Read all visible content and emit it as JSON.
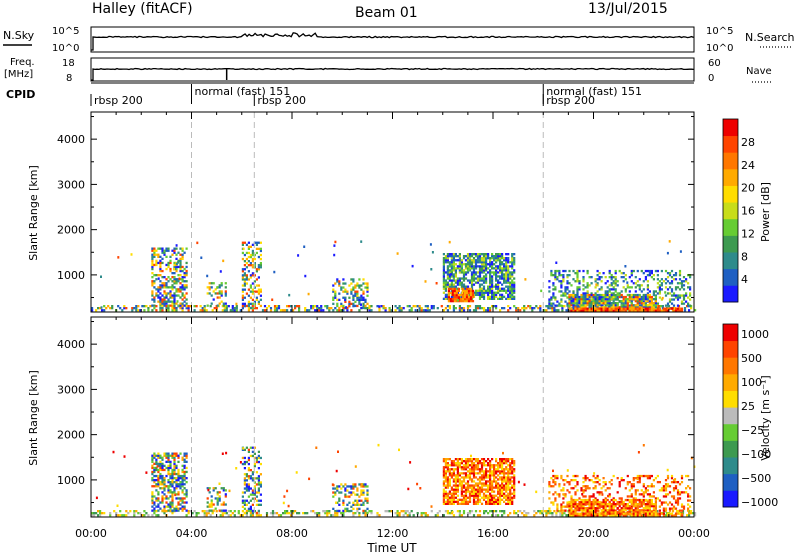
{
  "header": {
    "station": "Halley (fitACF)",
    "beam": "Beam 01",
    "date": "13/Jul/2015"
  },
  "top_panels": {
    "nsky": {
      "label": "N.Sky",
      "tick_top": "10^5",
      "tick_bottom": "10^0",
      "right_label": "N.Search",
      "right_tick_top": "10^5",
      "right_tick_bottom": "10^0",
      "right_legend_style": "dotted"
    },
    "freq": {
      "label_line1": "Freq.",
      "label_line2": "[MHz]",
      "tick_top": "18",
      "tick_bottom": "8",
      "right_label": "Nave",
      "right_tick_top": "60",
      "right_tick_bottom": "0",
      "right_legend_style": "dotted"
    },
    "cpid": {
      "label": "CPID",
      "segments": [
        {
          "start_hour": 0.0,
          "label": "rbsp 200"
        },
        {
          "start_hour": 4.0,
          "label": "normal (fast) 151"
        },
        {
          "start_hour": 6.5,
          "label": "rbsp 200"
        },
        {
          "start_hour": 18.0,
          "label": "normal (fast) 151"
        },
        {
          "start_hour": 18.0,
          "label": "rbsp 200"
        }
      ]
    }
  },
  "chart_data": [
    {
      "type": "heatmap",
      "title": "",
      "xlabel": "",
      "ylabel": "Slant Range [km]",
      "xlim": [
        0,
        24
      ],
      "ylim": [
        180,
        4600
      ],
      "x_ticks": [
        0,
        4,
        8,
        12,
        16,
        20,
        24
      ],
      "y_ticks": [
        1000,
        2000,
        3000,
        4000
      ],
      "colorbar": {
        "label": "Power [dB]",
        "ticks": [
          "4",
          "8",
          "12",
          "16",
          "20",
          "24",
          "28"
        ],
        "colors": [
          "#1a1aff",
          "#1e5fc2",
          "#2e8b8b",
          "#3d9a50",
          "#66cc33",
          "#c8dd1a",
          "#ffdd00",
          "#ffaa00",
          "#ff7700",
          "#ff4400",
          "#ee0000"
        ]
      },
      "vertical_markers_hours": [
        4.0,
        6.5,
        18.0
      ],
      "clusters": [
        {
          "x0": 0.0,
          "x1": 24.0,
          "r0": 200,
          "r1": 330,
          "density": 0.45,
          "palette": "mixed"
        },
        {
          "x0": 2.4,
          "x1": 3.8,
          "r0": 300,
          "r1": 1600,
          "density": 0.55,
          "palette": "mixed"
        },
        {
          "x0": 4.6,
          "x1": 5.4,
          "r0": 300,
          "r1": 800,
          "density": 0.35,
          "palette": "mixed"
        },
        {
          "x0": 6.0,
          "x1": 6.8,
          "r0": 250,
          "r1": 1700,
          "density": 0.4,
          "palette": "mixed"
        },
        {
          "x0": 9.6,
          "x1": 11.0,
          "r0": 250,
          "r1": 900,
          "density": 0.4,
          "palette": "mixed"
        },
        {
          "x0": 14.0,
          "x1": 16.8,
          "r0": 450,
          "r1": 1450,
          "density": 0.75,
          "palette": "low"
        },
        {
          "x0": 14.2,
          "x1": 15.2,
          "r0": 400,
          "r1": 700,
          "density": 0.8,
          "palette": "high"
        },
        {
          "x0": 18.2,
          "x1": 23.8,
          "r0": 300,
          "r1": 1100,
          "density": 0.35,
          "palette": "low"
        },
        {
          "x0": 19.0,
          "x1": 22.5,
          "r0": 220,
          "r1": 550,
          "density": 0.85,
          "palette": "mixed"
        },
        {
          "x0": 19.0,
          "x1": 23.5,
          "r0": 190,
          "r1": 280,
          "density": 0.9,
          "palette": "high"
        }
      ]
    },
    {
      "type": "heatmap",
      "title": "",
      "xlabel": "Time UT",
      "ylabel": "Slant Range [km]",
      "xlim": [
        0,
        24
      ],
      "ylim": [
        180,
        4600
      ],
      "x_ticks": [
        0,
        4,
        8,
        12,
        16,
        20,
        24
      ],
      "x_tick_labels": [
        "00:00",
        "04:00",
        "08:00",
        "12:00",
        "16:00",
        "20:00",
        "00:00"
      ],
      "y_ticks": [
        1000,
        2000,
        3000,
        4000
      ],
      "colorbar": {
        "label": "Velocity [m s⁻¹]",
        "ticks": [
          "1000",
          "500",
          "100",
          "25",
          "−25",
          "−100",
          "−500",
          "−1000"
        ],
        "colors": [
          "#1a1aff",
          "#1e5fc2",
          "#2e8b8b",
          "#3d9a50",
          "#66cc33",
          "#bbbbbb",
          "#ffdd00",
          "#ffaa00",
          "#ff7700",
          "#ff4400",
          "#ee0000"
        ]
      },
      "vertical_markers_hours": [
        4.0,
        6.5,
        18.0
      ],
      "clusters": [
        {
          "x0": 0.0,
          "x1": 24.0,
          "r0": 200,
          "r1": 330,
          "density": 0.45,
          "palette": "neutral"
        },
        {
          "x0": 2.4,
          "x1": 3.8,
          "r0": 300,
          "r1": 1600,
          "density": 0.55,
          "palette": "mixed"
        },
        {
          "x0": 4.6,
          "x1": 5.4,
          "r0": 300,
          "r1": 800,
          "density": 0.35,
          "palette": "mixed"
        },
        {
          "x0": 6.0,
          "x1": 6.8,
          "r0": 250,
          "r1": 1700,
          "density": 0.4,
          "palette": "mixed"
        },
        {
          "x0": 9.6,
          "x1": 11.0,
          "r0": 250,
          "r1": 900,
          "density": 0.4,
          "palette": "mixed"
        },
        {
          "x0": 14.0,
          "x1": 16.8,
          "r0": 450,
          "r1": 1450,
          "density": 0.75,
          "palette": "away"
        },
        {
          "x0": 18.2,
          "x1": 23.8,
          "r0": 300,
          "r1": 1100,
          "density": 0.3,
          "palette": "away"
        },
        {
          "x0": 19.0,
          "x1": 22.5,
          "r0": 220,
          "r1": 550,
          "density": 0.8,
          "palette": "away"
        },
        {
          "x0": 19.0,
          "x1": 23.5,
          "r0": 190,
          "r1": 280,
          "density": 0.85,
          "palette": "away"
        }
      ]
    }
  ]
}
